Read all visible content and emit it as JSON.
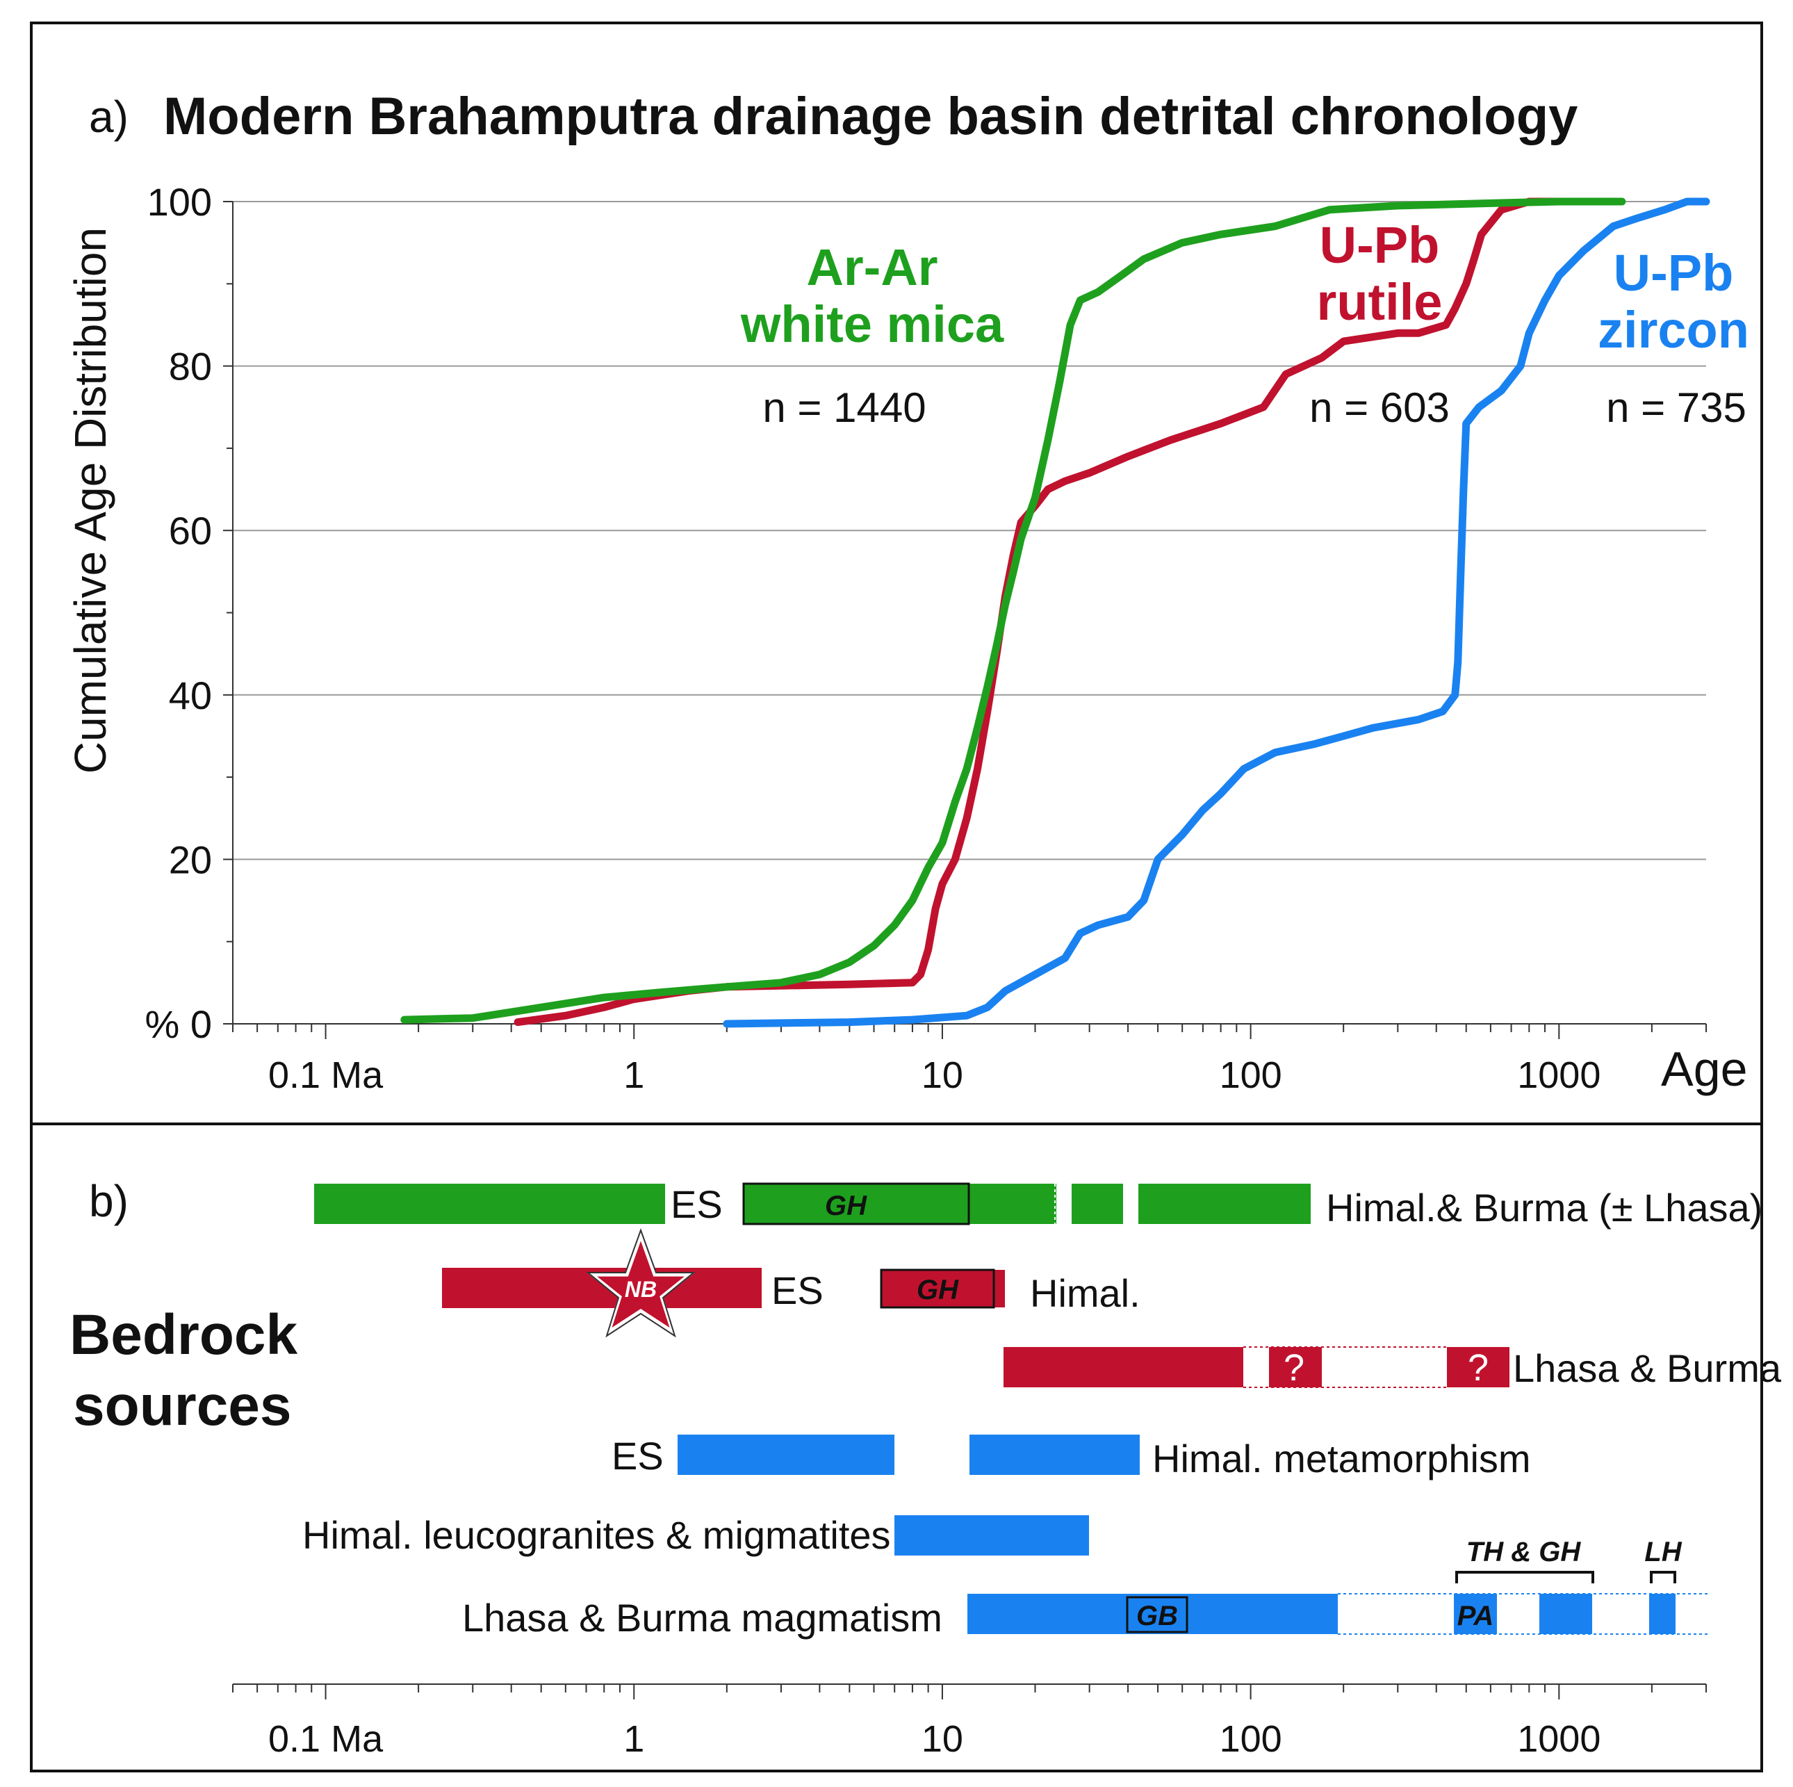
{
  "panel_a": {
    "tag": "a)",
    "title": "Modern Brahamputra drainage basin detrital chronology",
    "y_axis_label": "Cumulative Age Distribution",
    "x_axis_label": "Age",
    "annotations": [
      {
        "lines": [
          "Ar-Ar",
          "white mica"
        ],
        "count": "n = 1440"
      },
      {
        "lines": [
          "U-Pb",
          "rutile"
        ],
        "count": "n = 603"
      },
      {
        "lines": [
          "U-Pb",
          "zircon"
        ],
        "count": "n = 735"
      }
    ]
  },
  "panel_b": {
    "tag": "b)",
    "heading": [
      "Bedrock",
      "sources"
    ],
    "bar_labels": {
      "es_green": "ES",
      "gh_green": "GH",
      "green_right": "Himal.& Burma (± Lhasa)",
      "nb_star": "NB",
      "es_red": "ES",
      "gh_red": "GH",
      "red_right": "Himal.",
      "q1": "?",
      "q2": "?",
      "red2_right": "Lhasa & Burma",
      "es_blue": "ES",
      "blue1_right": "Himal. metamorphism",
      "blue2_left": "Himal. leucogranites & migmatites",
      "blue3_left": "Lhasa & Burma magmatism",
      "gb": "GB",
      "pa": "PA",
      "th_gh": "TH & GH",
      "lh": "LH"
    }
  },
  "chart_data": [
    {
      "type": "line",
      "title": "Modern Brahamputra drainage basin detrital chronology",
      "xlabel": "Age",
      "ylabel": "Cumulative Age Distribution",
      "x_scale": "log",
      "xlim": [
        0.05,
        3000
      ],
      "ylim": [
        0,
        100
      ],
      "x_ticks": [
        0.1,
        1,
        10,
        100,
        1000
      ],
      "x_tick_labels": [
        "0.1 Ma",
        "1",
        "10",
        "100",
        "1000"
      ],
      "y_ticks": [
        0,
        20,
        40,
        60,
        80,
        100
      ],
      "y_tick_labels": [
        "% 0",
        "20",
        "40",
        "60",
        "80",
        "100"
      ],
      "grid": "horizontal",
      "colors": {
        "ar_ar": "#1ea01e",
        "rutile": "#c0122e",
        "zircon": "#1a82f0"
      },
      "series": [
        {
          "name": "Ar-Ar white mica",
          "points": [
            [
              0.18,
              0.5
            ],
            [
              0.3,
              0.7
            ],
            [
              0.5,
              2
            ],
            [
              0.8,
              3.2
            ],
            [
              1.2,
              3.8
            ],
            [
              2,
              4.5
            ],
            [
              3,
              5
            ],
            [
              4,
              6
            ],
            [
              5,
              7.5
            ],
            [
              6,
              9.5
            ],
            [
              7,
              12
            ],
            [
              8,
              15
            ],
            [
              9,
              19
            ],
            [
              10,
              22
            ],
            [
              11,
              27
            ],
            [
              12,
              31
            ],
            [
              13,
              36
            ],
            [
              14,
              41
            ],
            [
              15,
              46
            ],
            [
              16,
              51
            ],
            [
              17,
              55
            ],
            [
              18,
              59
            ],
            [
              20,
              64
            ],
            [
              22,
              71
            ],
            [
              24,
              78
            ],
            [
              26,
              85
            ],
            [
              28,
              88
            ],
            [
              32,
              89
            ],
            [
              38,
              91
            ],
            [
              45,
              93
            ],
            [
              60,
              95
            ],
            [
              80,
              96
            ],
            [
              120,
              97
            ],
            [
              180,
              99
            ],
            [
              300,
              99.5
            ],
            [
              600,
              99.8
            ],
            [
              1000,
              100
            ],
            [
              1600,
              100
            ]
          ]
        },
        {
          "name": "U-Pb rutile",
          "points": [
            [
              0.42,
              0.2
            ],
            [
              0.6,
              1
            ],
            [
              0.8,
              2
            ],
            [
              1,
              3
            ],
            [
              1.5,
              4
            ],
            [
              2,
              4.5
            ],
            [
              5,
              4.8
            ],
            [
              8,
              5
            ],
            [
              8.5,
              6
            ],
            [
              9,
              9
            ],
            [
              9.5,
              14
            ],
            [
              10,
              17
            ],
            [
              11,
              20
            ],
            [
              12,
              25
            ],
            [
              13,
              31
            ],
            [
              14,
              38
            ],
            [
              15,
              45
            ],
            [
              16,
              52
            ],
            [
              17,
              57
            ],
            [
              18,
              61
            ],
            [
              20,
              63
            ],
            [
              22,
              65
            ],
            [
              25,
              66
            ],
            [
              30,
              67
            ],
            [
              40,
              69
            ],
            [
              55,
              71
            ],
            [
              80,
              73
            ],
            [
              110,
              75
            ],
            [
              130,
              79
            ],
            [
              170,
              81
            ],
            [
              200,
              83
            ],
            [
              300,
              84
            ],
            [
              350,
              84
            ],
            [
              430,
              85
            ],
            [
              460,
              87
            ],
            [
              500,
              90
            ],
            [
              530,
              93
            ],
            [
              560,
              96
            ],
            [
              650,
              99
            ],
            [
              800,
              100
            ],
            [
              1100,
              100
            ]
          ]
        },
        {
          "name": "U-Pb zircon",
          "points": [
            [
              2,
              0
            ],
            [
              5,
              0.2
            ],
            [
              8,
              0.5
            ],
            [
              12,
              1
            ],
            [
              14,
              2
            ],
            [
              16,
              4
            ],
            [
              20,
              6
            ],
            [
              25,
              8
            ],
            [
              28,
              11
            ],
            [
              32,
              12
            ],
            [
              40,
              13
            ],
            [
              45,
              15
            ],
            [
              50,
              20
            ],
            [
              60,
              23
            ],
            [
              70,
              26
            ],
            [
              80,
              28
            ],
            [
              95,
              31
            ],
            [
              120,
              33
            ],
            [
              160,
              34
            ],
            [
              200,
              35
            ],
            [
              250,
              36
            ],
            [
              350,
              37
            ],
            [
              420,
              38
            ],
            [
              460,
              40
            ],
            [
              470,
              44
            ],
            [
              480,
              55
            ],
            [
              490,
              65
            ],
            [
              500,
              73
            ],
            [
              550,
              75
            ],
            [
              650,
              77
            ],
            [
              750,
              80
            ],
            [
              800,
              84
            ],
            [
              900,
              88
            ],
            [
              1000,
              91
            ],
            [
              1200,
              94
            ],
            [
              1500,
              97
            ],
            [
              1800,
              98
            ],
            [
              2200,
              99
            ],
            [
              2600,
              100
            ],
            [
              3000,
              100
            ]
          ]
        }
      ]
    },
    {
      "type": "range-bar",
      "title": "Bedrock sources",
      "x_scale": "log",
      "x_ticks": [
        0.1,
        1,
        10,
        100,
        1000
      ],
      "x_tick_labels": [
        "0.1 Ma",
        "1",
        "10",
        "100",
        "1000"
      ],
      "bars": [
        {
          "name": "ES",
          "mineral": "Ar-Ar white mica",
          "row": 1,
          "from": 0.18,
          "to": 2,
          "color": "#1ea01e"
        },
        {
          "name": "GH",
          "mineral": "Ar-Ar white mica",
          "row": 1,
          "from": 3.3,
          "to": 16,
          "color": "#1ea01e"
        },
        {
          "name": "Himal.& Burma (± Lhasa)",
          "mineral": "Ar-Ar white mica",
          "row": 1,
          "from": 16,
          "to": 160,
          "color": "#1ea01e"
        },
        {
          "name": "ES",
          "mineral": "U-Pb rutile",
          "row": 2,
          "from": 0.42,
          "to": 4,
          "color": "#c0122e"
        },
        {
          "name": "GH",
          "mineral": "U-Pb rutile",
          "row": 2,
          "from": 9,
          "to": 20,
          "color": "#c0122e"
        },
        {
          "name": "Lhasa & Burma",
          "mineral": "U-Pb rutile",
          "row": 3,
          "from": 20,
          "to": 650,
          "color": "#c0122e"
        },
        {
          "name": "ES",
          "mineral": "U-Pb zircon",
          "row": 4,
          "from": 2.2,
          "to": 9.5,
          "color": "#1a82f0"
        },
        {
          "name": "Himal. metamorphism",
          "mineral": "U-Pb zircon",
          "row": 4,
          "from": 16,
          "to": 52,
          "color": "#1a82f0"
        },
        {
          "name": "Himal. leucogranites & migmatites",
          "mineral": "U-Pb zircon",
          "row": 5,
          "from": 9.5,
          "to": 36,
          "color": "#1a82f0"
        },
        {
          "name": "Lhasa & Burma magmatism",
          "mineral": "U-Pb zircon",
          "row": 6,
          "from": 16,
          "to": 200,
          "color": "#1a82f0"
        },
        {
          "name": "PA",
          "mineral": "U-Pb zircon",
          "row": 6,
          "from": 450,
          "to": 600,
          "color": "#1a82f0"
        },
        {
          "name": "TH & GH",
          "mineral": "U-Pb zircon",
          "row": 6,
          "from": 800,
          "to": 1150,
          "color": "#1a82f0"
        },
        {
          "name": "LH",
          "mineral": "U-Pb zircon",
          "row": 6,
          "from": 1700,
          "to": 2000,
          "color": "#1a82f0"
        }
      ]
    }
  ]
}
